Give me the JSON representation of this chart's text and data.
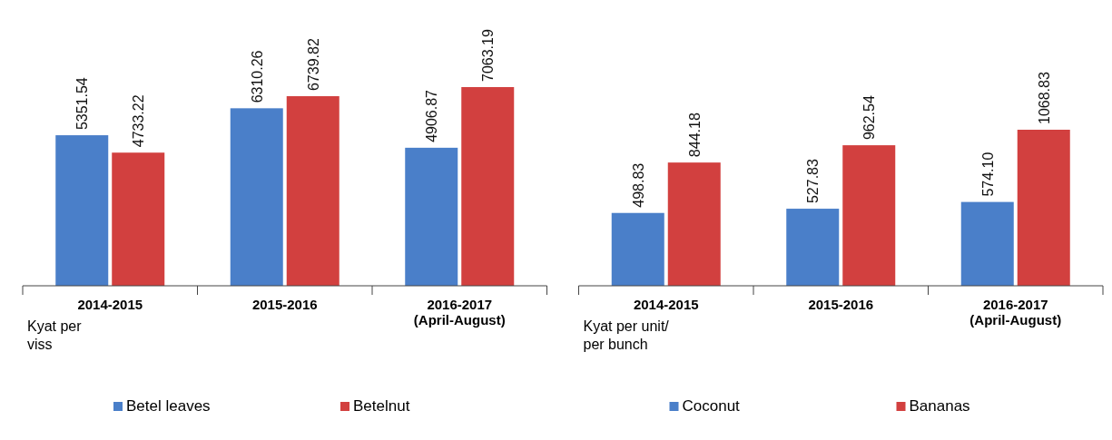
{
  "chart_data": [
    {
      "type": "bar",
      "categories": [
        "2014-2015",
        "2015-2016",
        "2016-2017\n(April-August)"
      ],
      "annotations": [
        "Kyat per\nviss"
      ],
      "legend": "bottom",
      "series": [
        {
          "name": "Betel leaves",
          "color": "#4a7fc9",
          "values": [
            5351.54,
            6310.26,
            4906.87
          ],
          "value_labels": [
            "5351.54",
            "6310.26",
            "4906.87"
          ]
        },
        {
          "name": "Betelnut",
          "color": "#d2403f",
          "values": [
            4733.22,
            6739.82,
            7063.19
          ],
          "value_labels": [
            "4733.22",
            "6739.82",
            "7063.19"
          ]
        }
      ]
    },
    {
      "type": "bar",
      "categories": [
        "2014-2015",
        "2015-2016",
        "2016-2017\n(April-August)"
      ],
      "annotations": [
        "Kyat per unit/\nper bunch"
      ],
      "legend": "bottom",
      "series": [
        {
          "name": "Coconut",
          "color": "#4a7fc9",
          "values": [
            498.83,
            527.83,
            574.1
          ],
          "value_labels": [
            "498.83",
            "527.83",
            "574.10"
          ]
        },
        {
          "name": "Bananas",
          "color": "#d2403f",
          "values": [
            844.18,
            962.54,
            1068.83
          ],
          "value_labels": [
            "844.18",
            "962.54",
            "1068.83"
          ]
        }
      ]
    }
  ]
}
